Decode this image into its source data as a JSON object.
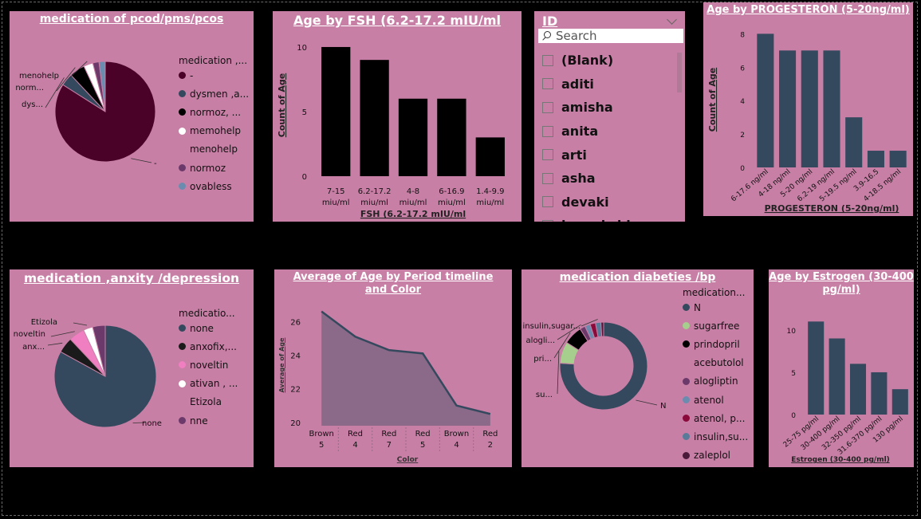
{
  "colors": {
    "panel": "#c87fa5",
    "bar_dark": "#000000",
    "bar_slate": "#34495e",
    "area": "#8a6a88",
    "area_line": "#34495e"
  },
  "panel1": {
    "title": "medication of pcod/pms/pcos",
    "chart_data": {
      "type": "pie",
      "slices": [
        {
          "label": "-",
          "value": 84,
          "color": "#4a0228",
          "callout": "-"
        },
        {
          "label": "dysmen ,a...",
          "value": 4,
          "color": "#34495e",
          "callout": "dys..."
        },
        {
          "label": "normoz, ...",
          "value": 5,
          "color": "#000000",
          "callout": "norm..."
        },
        {
          "label": "memohelp",
          "value": 3,
          "color": "#ffffff",
          "callout": "menohelp"
        },
        {
          "label": "menohelp",
          "value": 0,
          "color": "none",
          "callout": ""
        },
        {
          "label": "normoz",
          "value": 2,
          "color": "#6b3a6b",
          "callout": ""
        },
        {
          "label": "ovabless",
          "value": 2,
          "color": "#6c8caf",
          "callout": ""
        }
      ]
    },
    "legend_title": "medication ,...",
    "legend": [
      {
        "label": "-",
        "color": "#4a0228"
      },
      {
        "label": "dysmen ,a...",
        "color": "#34495e"
      },
      {
        "label": "normoz, ...",
        "color": "#000000"
      },
      {
        "label": "memohelp",
        "color": "#ffffff"
      },
      {
        "label": "menohelp",
        "color": ""
      },
      {
        "label": "normoz",
        "color": "#6b3a6b"
      },
      {
        "label": "ovabless",
        "color": "#6c8caf"
      }
    ]
  },
  "panel2": {
    "title": "Age by FSH (6.2-17.2 mIU/ml",
    "chart_data": {
      "type": "bar",
      "categories": [
        "7-15 miu/ml",
        "6.2-17.2 miu/ml",
        "4-8 miu/ml",
        "6-16.9 miu/ml",
        "1.4-9.9 miu/ml"
      ],
      "values": [
        10,
        9,
        6,
        6,
        3
      ],
      "ylim": [
        0,
        10.8
      ],
      "yticks": [
        "0",
        "5",
        "10"
      ],
      "xlabel": "FSH (6.2-17.2 mIU/ml",
      "ylabel": "Count of Age",
      "color": "#000000"
    }
  },
  "slicer": {
    "title": "ID",
    "search_placeholder": "Search",
    "items": [
      "(Blank)",
      "aditi",
      "amisha",
      "anita",
      "arti",
      "asha",
      "devaki",
      "hemakshi"
    ]
  },
  "panel4": {
    "title": "Age by PROGESTERON (5-20ng/ml)",
    "chart_data": {
      "type": "bar",
      "categories": [
        "6-17.6 ng/ml",
        "4-18 ng/ml",
        "5-20 ng/ml",
        "6.2-19 ng/ml",
        "5-19.5 ng/ml",
        "3.9-16.5",
        "4-18.5 ng/ml"
      ],
      "values": [
        8,
        7,
        7,
        7,
        3,
        1,
        1
      ],
      "ylim": [
        0,
        8.4
      ],
      "yticks": [
        "0",
        "2",
        "4",
        "6",
        "8"
      ],
      "xlabel": "PROGESTERON (5-20ng/ml)",
      "ylabel": "Count of Age",
      "color": "#34495e"
    }
  },
  "panel5": {
    "title": "medication ,anxity /depression",
    "chart_data": {
      "type": "pie",
      "slices": [
        {
          "label": "none",
          "value": 83,
          "color": "#34495e",
          "callout": "none"
        },
        {
          "label": "anxofix,...",
          "value": 5,
          "color": "#1a1a1a",
          "callout": "anx..."
        },
        {
          "label": "noveltin",
          "value": 5,
          "color": "#ef7fc0",
          "callout": "noveltin"
        },
        {
          "label": "ativan , ...",
          "value": 3,
          "color": "#ffffff",
          "callout": "Etizola"
        },
        {
          "label": "Etizola",
          "value": 0,
          "color": "none",
          "callout": ""
        },
        {
          "label": "nne",
          "value": 4,
          "color": "#6b3a6b",
          "callout": ""
        }
      ]
    },
    "legend_title": "medicatio...",
    "legend": [
      {
        "label": "none",
        "color": "#34495e"
      },
      {
        "label": "anxofix,...",
        "color": "#1a1a1a"
      },
      {
        "label": "noveltin",
        "color": "#ef7fc0"
      },
      {
        "label": "ativan , ...",
        "color": "#ffffff"
      },
      {
        "label": "Etizola",
        "color": ""
      },
      {
        "label": "nne",
        "color": "#6b3a6b"
      }
    ]
  },
  "panel6": {
    "title": "Average of Age by Period timeline and Color",
    "chart_data": {
      "type": "area",
      "categories": [
        [
          "Brown",
          "5"
        ],
        [
          "Red",
          "4"
        ],
        [
          "Red",
          "7"
        ],
        [
          "Red",
          "5"
        ],
        [
          "Brown",
          "4"
        ],
        [
          "Red",
          "2"
        ]
      ],
      "values": [
        26.6,
        25.1,
        24.3,
        24.1,
        21.0,
        20.5
      ],
      "ylim": [
        19.8,
        27.2
      ],
      "yticks": [
        "20",
        "22",
        "24",
        "26"
      ],
      "ytick_values": [
        20,
        22,
        24,
        26
      ],
      "xlabel": "Color",
      "ylabel": "Average of Age"
    }
  },
  "panel7": {
    "title": "medication diabeties /bp",
    "chart_data": {
      "type": "pie",
      "donut": true,
      "slices": [
        {
          "label": "N",
          "value": 76,
          "color": "#34495e",
          "callout": "N"
        },
        {
          "label": "sugarfree",
          "value": 8,
          "color": "#a6cf8e",
          "callout": "su..."
        },
        {
          "label": "prindopril",
          "value": 7,
          "color": "#000000",
          "callout": "pri..."
        },
        {
          "label": "acebutolol",
          "value": 0,
          "color": "none",
          "callout": ""
        },
        {
          "label": "alogliptin",
          "value": 2,
          "color": "#6b3a6b",
          "callout": "alogli..."
        },
        {
          "label": "atenol",
          "value": 2,
          "color": "#6c8caf",
          "callout": ""
        },
        {
          "label": "atenol, p...",
          "value": 2,
          "color": "#8a0a3a",
          "callout": ""
        },
        {
          "label": "insulin,su...",
          "value": 2,
          "color": "#5a7a9a",
          "callout": "insulin,sugar..."
        },
        {
          "label": "zaleplol",
          "value": 1,
          "color": "#4a1a3a",
          "callout": ""
        }
      ]
    },
    "legend_title": "medication...",
    "legend": [
      {
        "label": "N",
        "color": "#34495e"
      },
      {
        "label": "sugarfree",
        "color": "#a6cf8e"
      },
      {
        "label": "prindopril",
        "color": "#000000"
      },
      {
        "label": "acebutolol",
        "color": ""
      },
      {
        "label": "alogliptin",
        "color": "#6b3a6b"
      },
      {
        "label": "atenol",
        "color": "#6c8caf"
      },
      {
        "label": "atenol, p...",
        "color": "#8a0a3a"
      },
      {
        "label": "insulin,su...",
        "color": "#5a7a9a"
      },
      {
        "label": "zaleplol",
        "color": "#4a1a3a"
      }
    ]
  },
  "panel8": {
    "title": "Age by Estrogen (30-400 pg/ml)",
    "chart_data": {
      "type": "bar",
      "categories": [
        "25-75 pg/ml",
        "30-400 pg/ml",
        "32-350 pg/ml",
        "31.6-370 pg/ml",
        "130 pg/ml"
      ],
      "values": [
        11,
        9,
        6,
        5,
        3
      ],
      "ylim": [
        0,
        11.5
      ],
      "yticks": [
        "0",
        "5",
        "10"
      ],
      "xlabel": "Estrogen (30-400 pg/ml)",
      "ylabel": "",
      "color": "#34495e"
    }
  }
}
